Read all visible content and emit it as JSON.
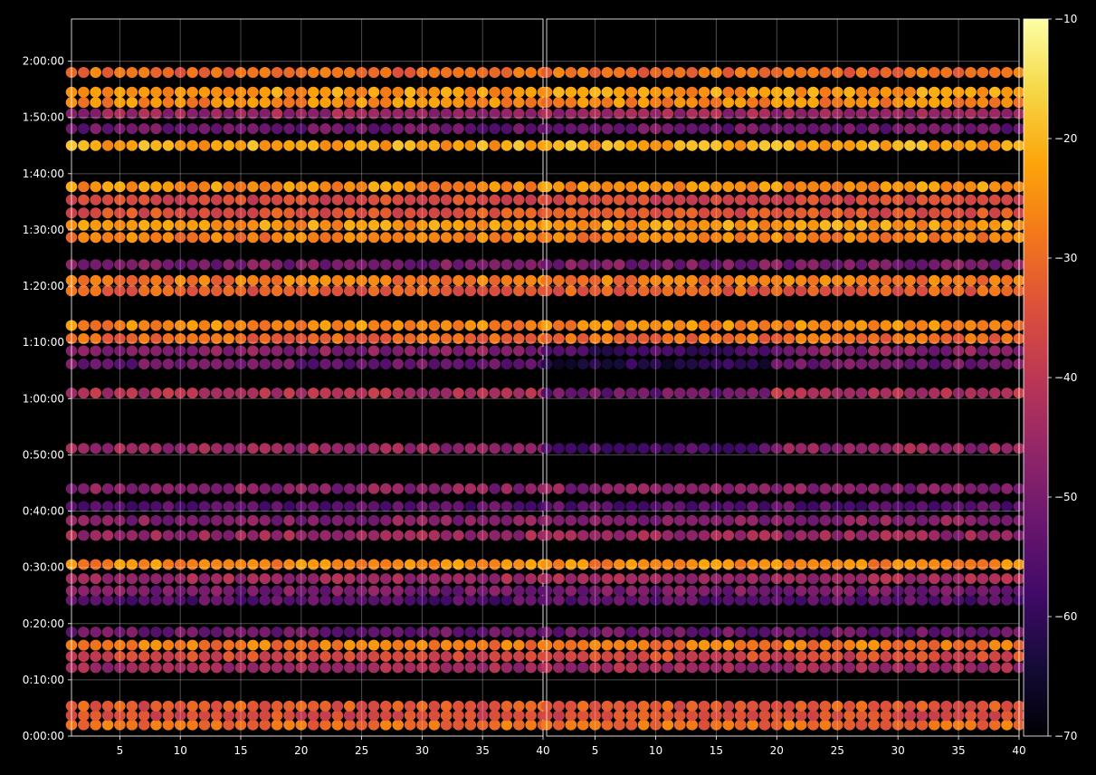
{
  "chart_data": {
    "type": "heatmap",
    "title": "",
    "xlabel": "",
    "ylabel": "",
    "background": "#000000",
    "grid": true,
    "colormap": "inferno",
    "colorbar": {
      "range": [
        -70,
        -10
      ],
      "ticks": [
        -10,
        -20,
        -30,
        -40,
        -50,
        -60,
        -70
      ],
      "tick_labels": [
        "−10",
        "−20",
        "−30",
        "−40",
        "−50",
        "−60",
        "−70"
      ]
    },
    "y_axis": {
      "unit": "h:mm:ss",
      "range_seconds": [
        0,
        7650
      ],
      "ticks_seconds": [
        0,
        600,
        1200,
        1800,
        2400,
        3000,
        3600,
        4200,
        4800,
        5400,
        6000,
        6600,
        7200
      ],
      "tick_labels": [
        "0:00:00",
        "0:10:00",
        "0:20:00",
        "0:30:00",
        "0:40:00",
        "0:50:00",
        "1:00:00",
        "1:10:00",
        "1:20:00",
        "1:30:00",
        "1:40:00",
        "1:50:00",
        "2:00:00"
      ]
    },
    "panels": [
      {
        "name": "left",
        "x_range": [
          1,
          40
        ],
        "x_ticks": [
          5,
          10,
          15,
          20,
          25,
          30,
          35,
          40
        ],
        "x_tick_labels": [
          "5",
          "10",
          "15",
          "20",
          "25",
          "30",
          "35",
          "40"
        ],
        "x_step": 1
      },
      {
        "name": "right",
        "x_range": [
          1,
          40
        ],
        "x_ticks": [
          5,
          10,
          15,
          20,
          25,
          30,
          35,
          40
        ],
        "x_tick_labels": [
          "5",
          "10",
          "15",
          "20",
          "25",
          "30",
          "35",
          "40"
        ],
        "x_step": 1
      }
    ],
    "bands": [
      {
        "y_seconds": 120,
        "level": -30
      },
      {
        "y_seconds": 220,
        "level": -35
      },
      {
        "y_seconds": 320,
        "level": -33
      },
      {
        "y_seconds": 730,
        "level": -44
      },
      {
        "y_seconds": 850,
        "level": -36
      },
      {
        "y_seconds": 970,
        "level": -28
      },
      {
        "y_seconds": 1110,
        "level": -52
      },
      {
        "y_seconds": 1450,
        "level": -55
      },
      {
        "y_seconds": 1550,
        "level": -50
      },
      {
        "y_seconds": 1680,
        "level": -44
      },
      {
        "y_seconds": 1830,
        "level": -26
      },
      {
        "y_seconds": 2140,
        "level": -45
      },
      {
        "y_seconds": 2300,
        "level": -48
      },
      {
        "y_seconds": 2450,
        "level": -55
      },
      {
        "y_seconds": 2640,
        "level": -48
      },
      {
        "y_seconds": 3070,
        "level": -46
      },
      {
        "y_seconds": 3660,
        "level": -42
      },
      {
        "y_seconds": 3970,
        "level": -52
      },
      {
        "y_seconds": 4110,
        "level": -48
      },
      {
        "y_seconds": 4240,
        "level": -30
      },
      {
        "y_seconds": 4380,
        "level": -26
      },
      {
        "y_seconds": 4750,
        "level": -32
      },
      {
        "y_seconds": 4860,
        "level": -28
      },
      {
        "y_seconds": 5030,
        "level": -50
      },
      {
        "y_seconds": 5320,
        "level": -27
      },
      {
        "y_seconds": 5450,
        "level": -24
      },
      {
        "y_seconds": 5580,
        "level": -34
      },
      {
        "y_seconds": 5720,
        "level": -36
      },
      {
        "y_seconds": 5860,
        "level": -25
      },
      {
        "y_seconds": 6300,
        "level": -22
      },
      {
        "y_seconds": 6480,
        "level": -52
      },
      {
        "y_seconds": 6640,
        "level": -45
      },
      {
        "y_seconds": 6760,
        "level": -26
      },
      {
        "y_seconds": 6870,
        "level": -24
      },
      {
        "y_seconds": 7080,
        "level": -30
      }
    ]
  }
}
